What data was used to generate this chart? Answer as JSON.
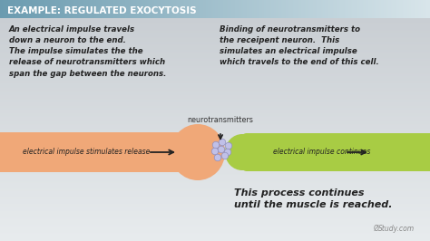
{
  "title": "EXAMPLE: REGULATED EXOCYTOSIS",
  "title_bg_left": "#6a9cb0",
  "title_bg_right": "#e0e8ec",
  "title_color": "#ffffff",
  "bg_color_top": "#c8d0d5",
  "bg_color_bottom": "#e8ecee",
  "left_text": "An electrical impulse travels\ndown a neuron to the end.\nThe impulse simulates the the\nrelease of neurotransmitters which\nspan the gap between the neurons.",
  "right_text": "Binding of neurotransmitters to\nthe receipent neuron.  This\nsimulates an electrical impulse\nwhich travels to the end of this cell.",
  "bottom_right_text": "This process continues\nuntil the muscle is reached.",
  "neurotransmitters_label": "neurotransmitters",
  "left_arrow_text": "electrical impulse stimulates release",
  "right_arrow_text": "electrical impulse continues",
  "orange_color": "#f0a878",
  "green_color": "#a8cc44",
  "dot_color": "#c0c0e8",
  "dot_edge_color": "#9090c0",
  "watermark": "Study.com",
  "watermark_circle": "Ø",
  "arrow_color": "#222222",
  "text_color": "#222222"
}
